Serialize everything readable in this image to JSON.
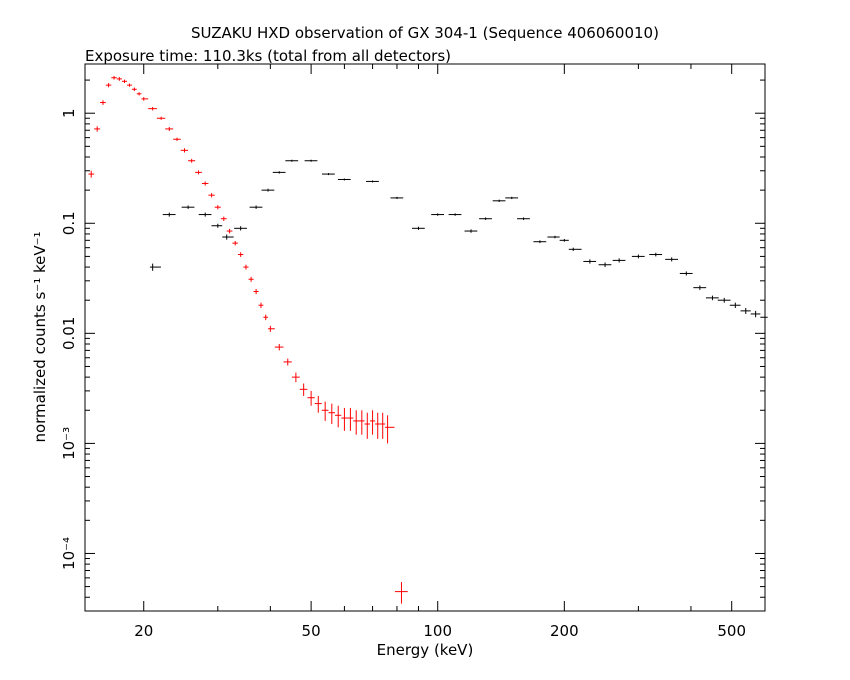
{
  "chart_data": {
    "type": "scatter",
    "title": "SUZAKU HXD observation of GX 304-1 (Sequence 406060010)",
    "subtitle": "Exposure time: 110.3ks (total from all detectors)",
    "xlabel": "Energy (keV)",
    "ylabel": "normalized counts s⁻¹ keV⁻¹",
    "xscale": "log",
    "yscale": "log",
    "xlim": [
      14.5,
      600
    ],
    "ylim": [
      3e-05,
      2.8
    ],
    "grid": false,
    "x_ticks": [
      {
        "value": 20,
        "label": "20"
      },
      {
        "value": 50,
        "label": "50"
      },
      {
        "value": 100,
        "label": "100"
      },
      {
        "value": 200,
        "label": "200"
      },
      {
        "value": 500,
        "label": "500"
      }
    ],
    "y_ticks": [
      {
        "value": 0.0001,
        "label": "10⁻⁴"
      },
      {
        "value": 0.001,
        "label": "10⁻³"
      },
      {
        "value": 0.01,
        "label": "0.01"
      },
      {
        "value": 0.1,
        "label": "0.1"
      },
      {
        "value": 1,
        "label": "1"
      }
    ],
    "series": [
      {
        "color": "#ff0000",
        "style": "crosses",
        "x": [
          15.0,
          15.5,
          16.0,
          16.5,
          17.0,
          17.5,
          18.0,
          18.5,
          19.0,
          19.5,
          20.0,
          21.0,
          22.0,
          23.0,
          24.0,
          25.0,
          26.0,
          27.0,
          28.0,
          29.0,
          30.0,
          31.0,
          32.0,
          33.0,
          34.0,
          35.0,
          36.0,
          37.0,
          38.0,
          39.0,
          40.0,
          42.0,
          44.0,
          46.0,
          48.0,
          50.0,
          52.0,
          54.0,
          56.0,
          58.0,
          60.0,
          62.0,
          64.0,
          66.0,
          68.0,
          70.0,
          72.0,
          74.0,
          76.0,
          82.0
        ],
        "y": [
          0.28,
          0.72,
          1.25,
          1.8,
          2.1,
          2.05,
          1.95,
          1.8,
          1.65,
          1.5,
          1.35,
          1.1,
          0.9,
          0.72,
          0.58,
          0.46,
          0.37,
          0.29,
          0.23,
          0.18,
          0.14,
          0.11,
          0.085,
          0.066,
          0.052,
          0.04,
          0.031,
          0.024,
          0.018,
          0.014,
          0.011,
          0.0075,
          0.0055,
          0.004,
          0.0031,
          0.0026,
          0.0023,
          0.002,
          0.0019,
          0.0018,
          0.0017,
          0.0017,
          0.0016,
          0.0016,
          0.0015,
          0.0016,
          0.0015,
          0.0015,
          0.0014,
          4.5e-05
        ],
        "yerr": [
          0.02,
          0.04,
          0.06,
          0.08,
          0.08,
          0.08,
          0.07,
          0.06,
          0.06,
          0.05,
          0.05,
          0.04,
          0.03,
          0.03,
          0.02,
          0.02,
          0.015,
          0.012,
          0.01,
          0.008,
          0.006,
          0.005,
          0.004,
          0.003,
          0.0025,
          0.002,
          0.0016,
          0.0013,
          0.001,
          0.0008,
          0.0007,
          0.0005,
          0.0004,
          0.0004,
          0.0004,
          0.0004,
          0.0004,
          0.0004,
          0.0004,
          0.0004,
          0.0004,
          0.0004,
          0.0004,
          0.0004,
          0.0004,
          0.0004,
          0.0004,
          0.0004,
          0.0004,
          1e-05
        ]
      },
      {
        "color": "#000000",
        "style": "crosses",
        "x": [
          21.0,
          23.0,
          25.5,
          28.0,
          30.0,
          31.5,
          34.0,
          37.0,
          39.5,
          42.0,
          45.0,
          50.0,
          55.0,
          60.0,
          70.0,
          80.0,
          90.0,
          100.0,
          110.0,
          120.0,
          130.0,
          140.0,
          150.0,
          160.0,
          175.0,
          190.0,
          200.0,
          210.0,
          230.0,
          250.0,
          270.0,
          300.0,
          330.0,
          360.0,
          390.0,
          420.0,
          450.0,
          480.0,
          510.0,
          540.0,
          570.0,
          600.0
        ],
        "y": [
          0.04,
          0.12,
          0.14,
          0.12,
          0.095,
          0.075,
          0.09,
          0.14,
          0.2,
          0.29,
          0.37,
          0.37,
          0.28,
          0.25,
          0.24,
          0.17,
          0.09,
          0.12,
          0.12,
          0.085,
          0.11,
          0.16,
          0.17,
          0.11,
          0.068,
          0.075,
          0.07,
          0.058,
          0.045,
          0.042,
          0.046,
          0.05,
          0.052,
          0.047,
          0.035,
          0.026,
          0.021,
          0.02,
          0.018,
          0.016,
          0.015,
          0.014
        ],
        "yerr": [
          0.003,
          0.005,
          0.005,
          0.005,
          0.004,
          0.004,
          0.004,
          0.005,
          0.006,
          0.007,
          0.008,
          0.008,
          0.006,
          0.005,
          0.005,
          0.004,
          0.003,
          0.003,
          0.003,
          0.003,
          0.003,
          0.004,
          0.004,
          0.003,
          0.002,
          0.002,
          0.002,
          0.002,
          0.002,
          0.002,
          0.002,
          0.002,
          0.002,
          0.002,
          0.0015,
          0.0012,
          0.001,
          0.001,
          0.001,
          0.001,
          0.001,
          0.001
        ]
      }
    ]
  }
}
